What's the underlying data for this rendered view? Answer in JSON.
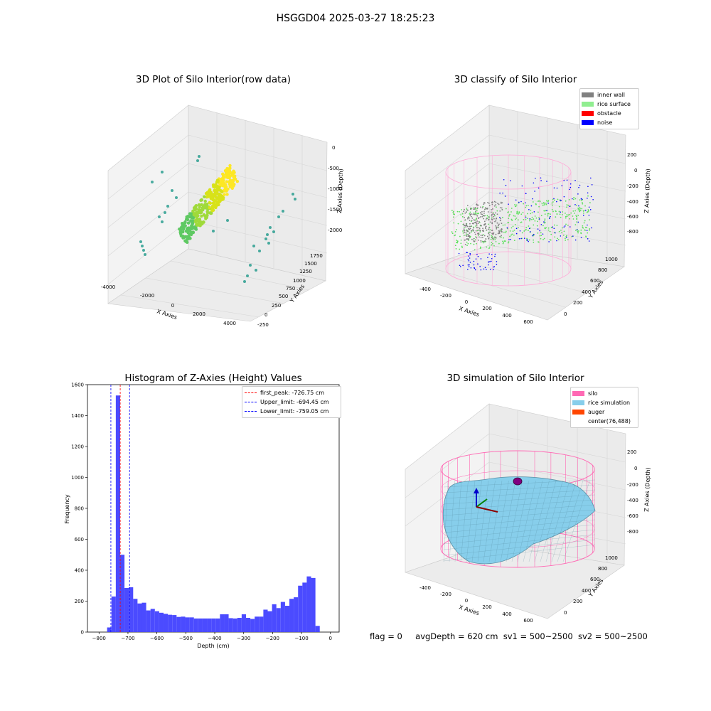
{
  "figure": {
    "suptitle": "HSGGD04 2025-03-27 18:25:23",
    "footer": {
      "flag": "flag = 0",
      "avg_depth": "avgDepth = 620 cm",
      "sv1": "sv1 = 500~2500",
      "sv2": "sv2 = 500~2500"
    }
  },
  "chart_data": [
    {
      "type": "scatter",
      "title": "3D Plot of Silo Interior(row data)",
      "xlabel": "X Axies",
      "ylabel": "Y Axies",
      "zlabel": "Z Axies (Depth)",
      "x_ticks": [
        "-4000",
        "-2000",
        "0",
        "2000",
        "4000"
      ],
      "y_ticks": [
        "-250",
        "0",
        "250",
        "500",
        "750",
        "1000",
        "1250",
        "1500",
        "1750"
      ],
      "z_ticks": [
        "0",
        "-500",
        "-1000",
        "-1500",
        "-2000"
      ],
      "colormap": "viridis"
    },
    {
      "type": "scatter",
      "title": "3D classify of Silo Interior",
      "xlabel": "X Axies",
      "ylabel": "Y Axies",
      "zlabel": "Z Axies (Depth)",
      "x_ticks": [
        "-400",
        "-200",
        "0",
        "200",
        "400",
        "600"
      ],
      "y_ticks": [
        "0",
        "200",
        "400",
        "600",
        "800",
        "1000"
      ],
      "z_ticks": [
        "200",
        "0",
        "-200",
        "-400",
        "-600",
        "-800"
      ],
      "legend": {
        "position": "top-right",
        "items": [
          {
            "label": "inner wall",
            "color": "#808080"
          },
          {
            "label": "rice surface",
            "color": "#90ee90"
          },
          {
            "label": "obstacle",
            "color": "#ff0000"
          },
          {
            "label": "noise",
            "color": "#0000ff"
          }
        ]
      }
    },
    {
      "type": "bar",
      "title": "Histogram of Z-Axies (Height) Values",
      "xlabel": "Depth (cm)",
      "ylabel": "Frequency",
      "xlim": [
        -840,
        30
      ],
      "ylim": [
        0,
        1600
      ],
      "x_ticks": [
        -800,
        -700,
        -600,
        -500,
        -400,
        -300,
        -200,
        -100,
        0
      ],
      "y_ticks": [
        0,
        200,
        400,
        600,
        800,
        1000,
        1200,
        1400,
        1600
      ],
      "bin_width": 15,
      "bins": [
        {
          "x0": -772,
          "v": 30
        },
        {
          "x0": -757,
          "v": 230
        },
        {
          "x0": -742,
          "v": 1530
        },
        {
          "x0": -727,
          "v": 500
        },
        {
          "x0": -712,
          "v": 285
        },
        {
          "x0": -697,
          "v": 290
        },
        {
          "x0": -682,
          "v": 215
        },
        {
          "x0": -667,
          "v": 185
        },
        {
          "x0": -652,
          "v": 190
        },
        {
          "x0": -637,
          "v": 140
        },
        {
          "x0": -622,
          "v": 150
        },
        {
          "x0": -607,
          "v": 135
        },
        {
          "x0": -592,
          "v": 125
        },
        {
          "x0": -577,
          "v": 118
        },
        {
          "x0": -562,
          "v": 112
        },
        {
          "x0": -547,
          "v": 110
        },
        {
          "x0": -532,
          "v": 98
        },
        {
          "x0": -517,
          "v": 100
        },
        {
          "x0": -502,
          "v": 95
        },
        {
          "x0": -487,
          "v": 95
        },
        {
          "x0": -472,
          "v": 88
        },
        {
          "x0": -457,
          "v": 88
        },
        {
          "x0": -442,
          "v": 88
        },
        {
          "x0": -427,
          "v": 88
        },
        {
          "x0": -412,
          "v": 88
        },
        {
          "x0": -397,
          "v": 88
        },
        {
          "x0": -382,
          "v": 115
        },
        {
          "x0": -367,
          "v": 115
        },
        {
          "x0": -352,
          "v": 90
        },
        {
          "x0": -337,
          "v": 88
        },
        {
          "x0": -322,
          "v": 92
        },
        {
          "x0": -307,
          "v": 115
        },
        {
          "x0": -292,
          "v": 92
        },
        {
          "x0": -277,
          "v": 85
        },
        {
          "x0": -262,
          "v": 100
        },
        {
          "x0": -247,
          "v": 100
        },
        {
          "x0": -232,
          "v": 145
        },
        {
          "x0": -217,
          "v": 135
        },
        {
          "x0": -202,
          "v": 180
        },
        {
          "x0": -187,
          "v": 155
        },
        {
          "x0": -172,
          "v": 195
        },
        {
          "x0": -157,
          "v": 170
        },
        {
          "x0": -142,
          "v": 215
        },
        {
          "x0": -127,
          "v": 225
        },
        {
          "x0": -112,
          "v": 300
        },
        {
          "x0": -97,
          "v": 320
        },
        {
          "x0": -82,
          "v": 360
        },
        {
          "x0": -67,
          "v": 350
        },
        {
          "x0": -52,
          "v": 40
        }
      ],
      "bar_color": "#4b4bff",
      "vlines": [
        {
          "x": -726.75,
          "color": "#ff0000"
        },
        {
          "x": -694.45,
          "color": "#0000ff"
        },
        {
          "x": -759.05,
          "color": "#0000ff"
        }
      ],
      "legend": {
        "position": "top-right",
        "items": [
          {
            "label": "first_peak: -726.75 cm",
            "color": "#ff0000"
          },
          {
            "label": "Upper_limit: -694.45 cm",
            "color": "#0000ff"
          },
          {
            "label": "Lower_limit: -759.05 cm",
            "color": "#0000ff"
          }
        ]
      }
    },
    {
      "type": "area",
      "title": "3D simulation of Silo Interior",
      "xlabel": "X Axies",
      "ylabel": "Y Axies",
      "zlabel": "Z Axies (Depth)",
      "x_ticks": [
        "-400",
        "-200",
        "0",
        "200",
        "400",
        "600"
      ],
      "y_ticks": [
        "0",
        "200",
        "400",
        "600",
        "800",
        "1000"
      ],
      "z_ticks": [
        "200",
        "0",
        "-200",
        "-400",
        "-600",
        "-800"
      ],
      "legend": {
        "position": "top-right",
        "items": [
          {
            "label": "silo",
            "color": "#ff69b4"
          },
          {
            "label": "rice simulation",
            "color": "#87ceeb"
          },
          {
            "label": "auger",
            "color": "#ff4500"
          },
          {
            "label": "center(76,488)",
            "color": "#ffffff"
          }
        ]
      }
    }
  ]
}
